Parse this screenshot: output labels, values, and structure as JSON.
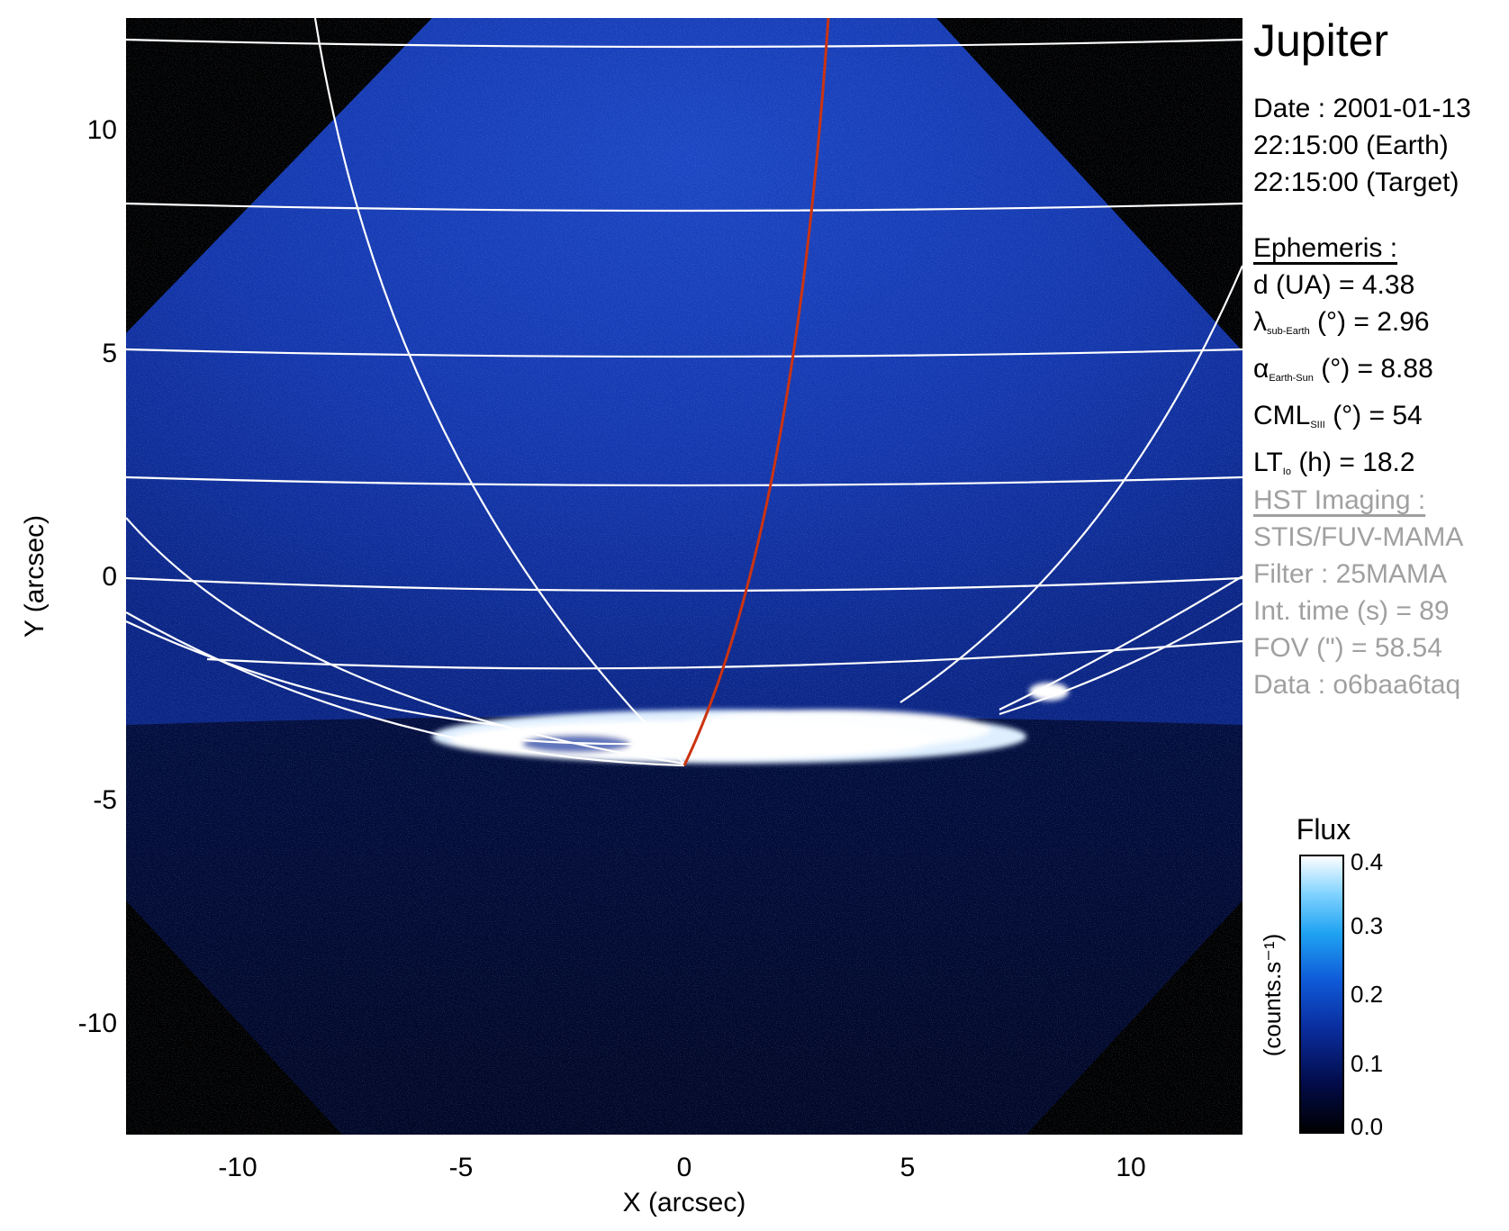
{
  "target": "Jupiter",
  "date": {
    "date_line": "Date : 2001-01-13",
    "earth_time": "22:15:00 (Earth)",
    "target_time": "22:15:00 (Target)"
  },
  "ephemeris": {
    "heading": "Ephemeris :",
    "rows": [
      {
        "pre": "d (UA)    = 4.38",
        "sub": "",
        "post": ""
      },
      {
        "pre": "λ",
        "sub": "sub-Earth",
        "post": " (°) = 2.96"
      },
      {
        "pre": "α",
        "sub": "Earth-Sun",
        "post": " (°) = 8.88"
      },
      {
        "pre": "CML",
        "sub": "SIII",
        "post": " (°) = 54"
      },
      {
        "pre": "LT",
        "sub": "Io",
        "post": " (h) = 18.2"
      }
    ]
  },
  "hst": {
    "heading": "HST Imaging :",
    "lines": [
      "STIS/FUV-MAMA",
      "Filter : 25MAMA",
      "Int. time (s) = 89",
      "FOV (\") = 58.54",
      "Data : o6baa6taq"
    ]
  },
  "axes": {
    "xlabel": "X (arcsec)",
    "ylabel": "Y (arcsec)",
    "xrange": [
      -12.5,
      12.5
    ],
    "yrange": [
      -12.5,
      12.5
    ],
    "xticks": [
      "-10",
      "-5",
      "0",
      "5",
      "10"
    ],
    "yticks": [
      "10",
      "5",
      "0",
      "-5",
      "-10"
    ]
  },
  "colorbar": {
    "title": "Flux",
    "unit_label": "(counts.s⁻¹)",
    "ticks": [
      "0.4",
      "0.3",
      "0.2",
      "0.1",
      "0.0"
    ]
  },
  "colors": {
    "background_sky": "#000000",
    "planet_blue": "#0b2ea8",
    "aurora": "#ffffff",
    "io_footprint": "#cc3311",
    "grid": "#ffffff"
  }
}
